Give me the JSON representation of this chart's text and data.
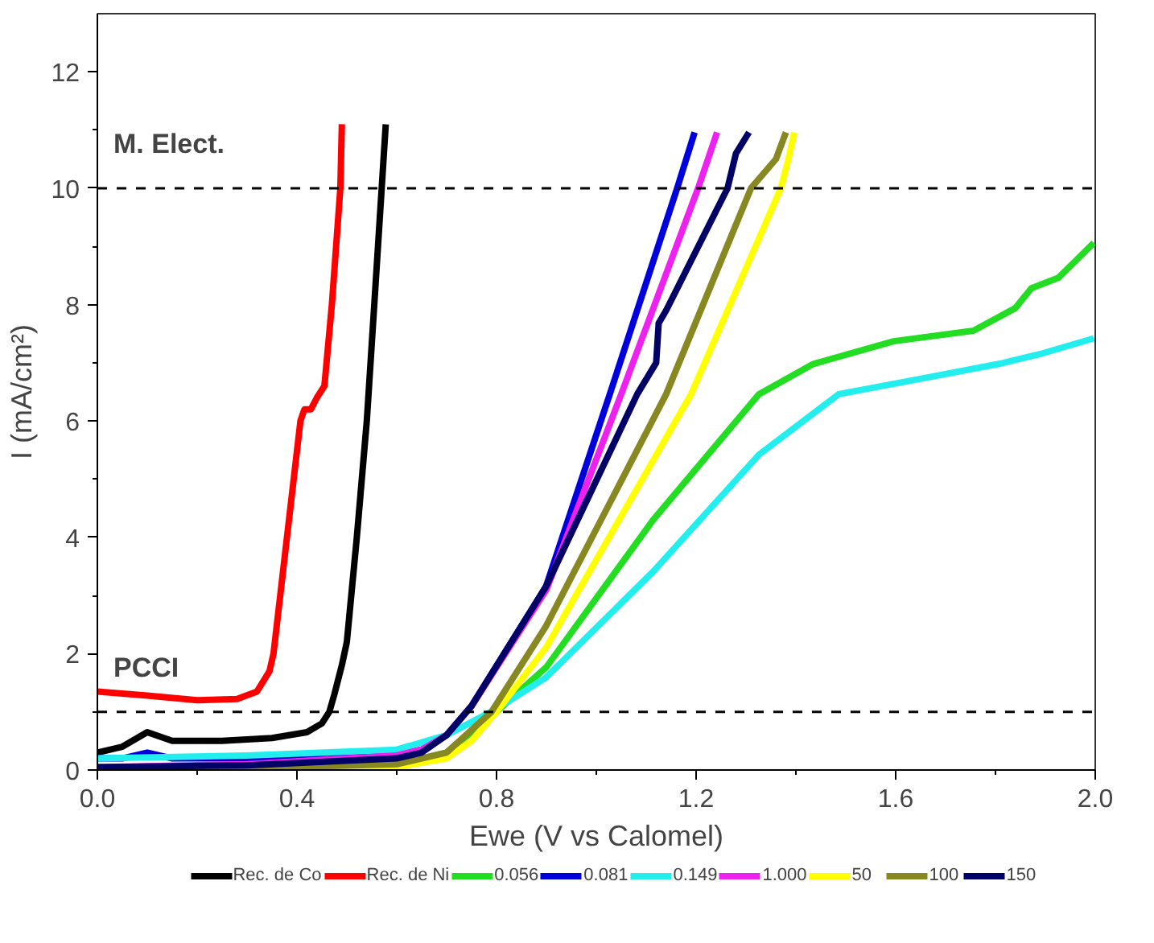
{
  "chart_data": {
    "type": "line",
    "xlabel": "Ewe (V vs Calomel)",
    "ylabel": "I (mA/cm²)",
    "xlim": [
      0,
      2.0
    ],
    "ylim": [
      0,
      13
    ],
    "xticks": [
      "0.0",
      {
        "value": 0.2,
        "label": null
      },
      {
        "value": 0.4,
        "label": "0.4"
      },
      {
        "value": 0.6,
        "label": null
      },
      {
        "value": 0.8,
        "label": "0.8"
      },
      {
        "value": 1.0,
        "label": null
      },
      {
        "value": 1.2,
        "label": "1.2"
      },
      {
        "value": 1.4,
        "label": null
      },
      {
        "value": 1.6,
        "label": "1.6"
      },
      {
        "value": 1.8,
        "label": null
      },
      {
        "value": 2.0,
        "label": "2.0"
      }
    ],
    "yticks": [
      0,
      {
        "value": 1,
        "label": null
      },
      2,
      {
        "value": 3,
        "label": null
      },
      4,
      {
        "value": 5,
        "label": null
      },
      6,
      {
        "value": 7,
        "label": null
      },
      8,
      {
        "value": 9,
        "label": null
      },
      10,
      {
        "value": 11,
        "label": null
      },
      12
    ],
    "grid": false,
    "legend": "bottom",
    "line_style": "solid",
    "marker": "none",
    "ref_lines": [
      {
        "axis": "y",
        "value": 10,
        "label": "M. Elect.",
        "color": "#000000",
        "line_style": "dashed"
      },
      {
        "axis": "y",
        "value": 1,
        "label": "PCCI",
        "color": "#000000",
        "line_style": "dashed"
      }
    ],
    "series": [
      {
        "name": "Rec. de Co",
        "color": "#000000",
        "x": [
          0,
          0.05,
          0.1,
          0.15,
          0.25,
          0.35,
          0.42,
          0.45,
          0.465,
          0.475,
          0.49,
          0.5,
          0.52,
          0.54,
          0.555,
          0.578
        ],
        "values": [
          0.3,
          0.4,
          0.65,
          0.5,
          0.5,
          0.55,
          0.65,
          0.8,
          1.0,
          1.3,
          1.8,
          2.2,
          4.0,
          6.0,
          8.0,
          11.1
        ]
      },
      {
        "name": "Rec. de Ni",
        "color": "#ff0000",
        "x": [
          0,
          0.1,
          0.2,
          0.28,
          0.32,
          0.345,
          0.353,
          0.38,
          0.407,
          0.415,
          0.428,
          0.44,
          0.455,
          0.47,
          0.487,
          0.49
        ],
        "values": [
          1.35,
          1.28,
          1.2,
          1.22,
          1.35,
          1.7,
          2.0,
          4.0,
          6.0,
          6.2,
          6.2,
          6.4,
          6.6,
          8.0,
          10.0,
          11.1
        ]
      },
      {
        "name": "0.056",
        "color": "#22dd22",
        "x": [
          0.6,
          0.7,
          0.8,
          0.9,
          1.114,
          1.326,
          1.435,
          1.596,
          1.756,
          1.84,
          1.872,
          1.926,
          1.997
        ],
        "values": [
          0.1,
          0.3,
          1.0,
          1.77,
          4.3,
          6.46,
          6.98,
          7.37,
          7.55,
          7.94,
          8.28,
          8.46,
          9.06
        ]
      },
      {
        "name": "0.081",
        "color": "#0000dd",
        "x": [
          0,
          0.05,
          0.1,
          0.15,
          0.3,
          0.6,
          0.65,
          0.7,
          0.75,
          0.899,
          1.027,
          1.162,
          1.197
        ],
        "values": [
          0.2,
          0.2,
          0.3,
          0.2,
          0.2,
          0.25,
          0.35,
          0.6,
          1.1,
          3.15,
          6.46,
          10.0,
          10.96
        ]
      },
      {
        "name": "0.149",
        "color": "#22eeee",
        "x": [
          0,
          0.3,
          0.6,
          0.7,
          0.8,
          0.899,
          1.114,
          1.326,
          1.486,
          1.647,
          1.807,
          1.894,
          1.997
        ],
        "values": [
          0.2,
          0.25,
          0.35,
          0.6,
          1.05,
          1.59,
          3.41,
          5.42,
          6.46,
          6.72,
          6.98,
          7.16,
          7.42
        ]
      },
      {
        "name": "1.000",
        "color": "#ee22ee",
        "x": [
          0,
          0.3,
          0.6,
          0.65,
          0.7,
          0.75,
          0.9,
          1.05,
          1.204,
          1.242
        ],
        "values": [
          0.05,
          0.1,
          0.25,
          0.35,
          0.6,
          1.1,
          3.1,
          6.46,
          10.0,
          10.96
        ]
      },
      {
        "name": "50",
        "color": "#ffff00",
        "x": [
          0,
          0.3,
          0.6,
          0.7,
          0.75,
          0.8,
          0.899,
          1.19,
          1.37,
          1.385,
          1.397
        ],
        "values": [
          0.02,
          0.02,
          0.05,
          0.2,
          0.5,
          1.0,
          2.1,
          6.46,
          10.0,
          10.5,
          10.96
        ]
      },
      {
        "name": "100",
        "color": "#888822",
        "x": [
          0,
          0.3,
          0.6,
          0.7,
          0.79,
          0.899,
          1.14,
          1.31,
          1.36,
          1.38
        ],
        "values": [
          0.02,
          0.03,
          0.1,
          0.3,
          1.0,
          2.47,
          6.46,
          10.0,
          10.5,
          10.96
        ]
      },
      {
        "name": "150",
        "color": "#000066",
        "x": [
          0,
          0.3,
          0.6,
          0.65,
          0.7,
          0.75,
          0.899,
          1.082,
          1.12,
          1.125,
          1.14,
          1.263,
          1.28,
          1.306
        ],
        "values": [
          0.05,
          0.08,
          0.2,
          0.3,
          0.6,
          1.1,
          3.15,
          6.46,
          7.0,
          7.68,
          7.9,
          10.0,
          10.6,
          10.96
        ]
      }
    ]
  }
}
